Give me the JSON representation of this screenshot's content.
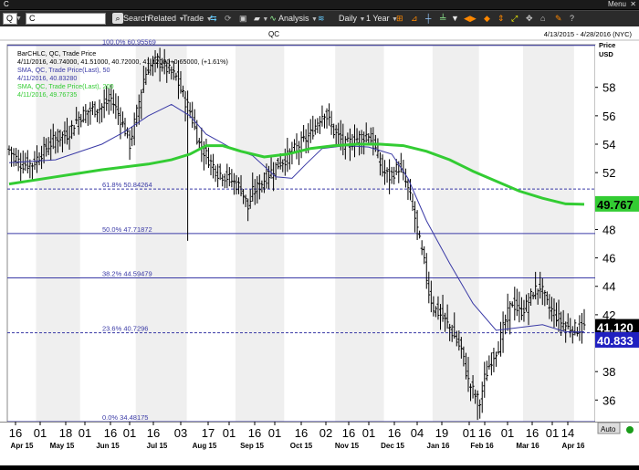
{
  "window": {
    "title": "C",
    "menu_label": "Menu"
  },
  "toolbar": {
    "symbol_field": "Q",
    "symbol_value": "C",
    "search_label": "Search",
    "related_label": "Related",
    "trade_label": "Trade",
    "analysis_label": "Analysis",
    "period_label": "Daily",
    "range_label": "1 Year"
  },
  "header": {
    "symbol": "QC",
    "date_range": "4/13/2015 - 4/28/2016 (NYC)",
    "price_label": "Price",
    "currency_label": "USD",
    "auto_label": "Auto"
  },
  "legend": {
    "line1": "BarCHLC, QC, Trade Price",
    "line2": "4/11/2016, 40.74000, 41.51000, 40.72000, 41.12000+0.65000, (+1.61%)",
    "line3": "SMA, QC, Trade Price(Last),  50",
    "line4": "4/11/2016, 40.83280",
    "line5": "SMA, QC, Trade Price(Last),  200",
    "line6": "4/11/2016, 49.76735"
  },
  "badges": {
    "sma200": "49.767",
    "last": "41.120",
    "sma50": "40.833"
  },
  "chart_data": {
    "type": "bar",
    "subtype": "ohlc_with_sma",
    "symbol": "QC",
    "ylim": [
      34.48,
      61.0
    ],
    "y_ticks": [
      36,
      38,
      40,
      42,
      44,
      46,
      48,
      50,
      52,
      54,
      56,
      58
    ],
    "x_day_labels": [
      "16",
      "01",
      "18",
      "01",
      "16",
      "01",
      "16",
      "03",
      "17",
      "01",
      "16",
      "01",
      "16",
      "02",
      "16",
      "01",
      "16",
      "04",
      "19",
      "01",
      "16",
      "01",
      "16",
      "01",
      "14"
    ],
    "x_month_labels": [
      "Apr 15",
      "May 15",
      "Jun 15",
      "Jul 15",
      "Aug 15",
      "Sep 15",
      "Oct 15",
      "Nov 15",
      "Dec 15",
      "Jan 16",
      "Feb 16",
      "Mar 16",
      "Apr 16"
    ],
    "fibonacci": [
      {
        "label": "100.0%",
        "value": "60.95569",
        "v": 60.95569
      },
      {
        "label": "61.8%",
        "value": "50.84264",
        "v": 50.84264
      },
      {
        "label": "50.0%",
        "value": "47.71872",
        "v": 47.71872
      },
      {
        "label": "38.2%",
        "value": "44.59479",
        "v": 44.59479
      },
      {
        "label": "23.6%",
        "value": "40.7296",
        "v": 40.7296
      },
      {
        "label": "0.0%",
        "value": "34.48175",
        "v": 34.48175
      }
    ],
    "price_anchors": [
      [
        0,
        53.6
      ],
      [
        5,
        52.6
      ],
      [
        10,
        52.6
      ],
      [
        14,
        53.4
      ],
      [
        20,
        54.4
      ],
      [
        25,
        54.7
      ],
      [
        30,
        55.9
      ],
      [
        35,
        56.4
      ],
      [
        40,
        56.6
      ],
      [
        44,
        57.2
      ],
      [
        48,
        55.8
      ],
      [
        50,
        55.0
      ],
      [
        52,
        54.0
      ],
      [
        55,
        56.2
      ],
      [
        58,
        58.6
      ],
      [
        60,
        59.4
      ],
      [
        64,
        59.9
      ],
      [
        68,
        59.3
      ],
      [
        72,
        58.7
      ],
      [
        75,
        57.4
      ],
      [
        78,
        56.3
      ],
      [
        82,
        54.0
      ],
      [
        84,
        53.5
      ],
      [
        87,
        52.7
      ],
      [
        90,
        52.0
      ],
      [
        94,
        51.7
      ],
      [
        97,
        51.3
      ],
      [
        100,
        50.9
      ],
      [
        103,
        49.5
      ],
      [
        105,
        50.6
      ],
      [
        108,
        51.1
      ],
      [
        112,
        51.9
      ],
      [
        116,
        52.6
      ],
      [
        120,
        53.1
      ],
      [
        125,
        53.9
      ],
      [
        130,
        54.7
      ],
      [
        134,
        55.9
      ],
      [
        136,
        56.3
      ],
      [
        140,
        54.9
      ],
      [
        145,
        53.9
      ],
      [
        150,
        54.4
      ],
      [
        155,
        54.7
      ],
      [
        158,
        53.6
      ],
      [
        161,
        52.1
      ],
      [
        164,
        51.7
      ],
      [
        168,
        52.4
      ],
      [
        171,
        51.3
      ],
      [
        173,
        50.2
      ],
      [
        175,
        48.8
      ],
      [
        177,
        47.1
      ],
      [
        179,
        45.6
      ],
      [
        181,
        43.6
      ],
      [
        183,
        42.5
      ],
      [
        186,
        42.0
      ],
      [
        190,
        41.1
      ],
      [
        195,
        39.5
      ],
      [
        198,
        37.3
      ],
      [
        201,
        36.3
      ],
      [
        203,
        35.8
      ],
      [
        205,
        37.5
      ],
      [
        208,
        38.9
      ],
      [
        211,
        39.8
      ],
      [
        214,
        41.6
      ],
      [
        217,
        42.9
      ],
      [
        220,
        42.2
      ],
      [
        223,
        42.6
      ],
      [
        226,
        43.6
      ],
      [
        229,
        44.0
      ],
      [
        232,
        42.7
      ],
      [
        235,
        42.1
      ],
      [
        238,
        41.5
      ],
      [
        241,
        41.1
      ],
      [
        244,
        41.0
      ],
      [
        248,
        41.1
      ]
    ],
    "series": [
      {
        "name": "BarCHLC, QC, Trade Price",
        "type": "ohlc",
        "color": "#000000",
        "last": 41.12,
        "change": 0.65,
        "change_pct": 1.61
      },
      {
        "name": "SMA 50",
        "type": "line",
        "color": "#3a3aa6",
        "last": 40.8328,
        "values": [
          [
            0,
            52.7
          ],
          [
            20,
            52.9
          ],
          [
            40,
            54.0
          ],
          [
            50,
            54.9
          ],
          [
            60,
            56.0
          ],
          [
            70,
            56.8
          ],
          [
            78,
            56.0
          ],
          [
            85,
            54.7
          ],
          [
            95,
            53.8
          ],
          [
            105,
            53.2
          ],
          [
            115,
            51.7
          ],
          [
            122,
            51.6
          ],
          [
            128,
            52.6
          ],
          [
            135,
            53.7
          ],
          [
            145,
            53.9
          ],
          [
            155,
            53.8
          ],
          [
            165,
            53.3
          ],
          [
            172,
            51.6
          ],
          [
            180,
            48.6
          ],
          [
            190,
            45.6
          ],
          [
            200,
            42.8
          ],
          [
            210,
            40.9
          ],
          [
            220,
            41.1
          ],
          [
            230,
            41.3
          ],
          [
            240,
            40.8
          ],
          [
            248,
            40.8
          ]
        ]
      },
      {
        "name": "SMA 200",
        "type": "line",
        "color": "#33cc33",
        "last": 49.76735,
        "values": [
          [
            0,
            51.2
          ],
          [
            20,
            51.7
          ],
          [
            40,
            52.2
          ],
          [
            60,
            52.6
          ],
          [
            70,
            52.9
          ],
          [
            78,
            53.3
          ],
          [
            85,
            53.9
          ],
          [
            92,
            53.9
          ],
          [
            100,
            53.5
          ],
          [
            110,
            53.1
          ],
          [
            120,
            53.3
          ],
          [
            130,
            53.7
          ],
          [
            140,
            53.9
          ],
          [
            150,
            54.0
          ],
          [
            160,
            54.0
          ],
          [
            170,
            53.9
          ],
          [
            180,
            53.5
          ],
          [
            190,
            52.9
          ],
          [
            200,
            52.1
          ],
          [
            210,
            51.4
          ],
          [
            220,
            50.7
          ],
          [
            230,
            50.2
          ],
          [
            240,
            49.8
          ],
          [
            248,
            49.77
          ]
        ]
      }
    ]
  }
}
